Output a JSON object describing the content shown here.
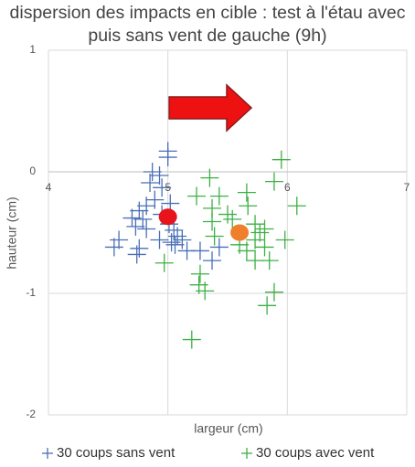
{
  "chart_data": {
    "type": "scatter",
    "title": "dispersion des impacts en cible : test à l'étau avec puis sans vent de gauche (9h)",
    "xlabel": "largeur (cm)",
    "ylabel": "hauteur (cm)",
    "xlim": [
      4,
      7
    ],
    "ylim": [
      -2,
      1
    ],
    "xticks": [
      4,
      5,
      6,
      7
    ],
    "yticks": [
      -2,
      -1,
      0,
      1
    ],
    "grid": true,
    "series": [
      {
        "name": "30 coups sans vent",
        "color": "#4a6fb5",
        "x": [
          5.0,
          5.0,
          4.87,
          4.93,
          4.85,
          4.95,
          5.02,
          4.89,
          4.82,
          4.76,
          4.7,
          4.79,
          4.95,
          5.01,
          5.05,
          5.08,
          5.06,
          5.03,
          5.12,
          4.93,
          4.82,
          4.73,
          4.59,
          4.76,
          4.74,
          4.55,
          5.16,
          5.27,
          5.37,
          5.43
        ],
        "values": [
          0.17,
          0.12,
          0,
          -0.03,
          -0.09,
          -0.13,
          -0.26,
          -0.23,
          -0.28,
          -0.32,
          -0.38,
          -0.39,
          -0.35,
          -0.43,
          -0.48,
          -0.53,
          -0.6,
          -0.58,
          -0.56,
          -0.56,
          -0.47,
          -0.45,
          -0.56,
          -0.63,
          -0.68,
          -0.62,
          -0.65,
          -0.65,
          -0.73,
          -0.62
        ]
      },
      {
        "name": "30 coups avec vent",
        "color": "#3cb043",
        "x": [
          5.95,
          5.89,
          6.08,
          5.35,
          5.24,
          5.43,
          5.66,
          5.67,
          5.54,
          5.37,
          5.39,
          5.6,
          5.73,
          5.66,
          5.77,
          5.81,
          5.98,
          5.81,
          5.73,
          5.85,
          5.89,
          5.83,
          4.97,
          5.27,
          5.26,
          5.31,
          5.2,
          5.5,
          5.73,
          5.37
        ],
        "values": [
          0.1,
          -0.08,
          -0.28,
          -0.05,
          -0.2,
          -0.2,
          -0.17,
          -0.28,
          -0.39,
          -0.41,
          -0.53,
          -0.6,
          -0.56,
          -0.65,
          -0.5,
          -0.62,
          -0.56,
          -0.47,
          -0.73,
          -0.73,
          -0.99,
          -1.1,
          -0.75,
          -0.84,
          -0.93,
          -0.98,
          -1.38,
          -0.35,
          -0.43,
          -0.3
        ]
      }
    ],
    "markers": [
      {
        "x": 5.0,
        "y": -0.37,
        "color": "#e8141b"
      },
      {
        "x": 5.6,
        "y": -0.5,
        "color": "#f07f2c"
      }
    ]
  }
}
